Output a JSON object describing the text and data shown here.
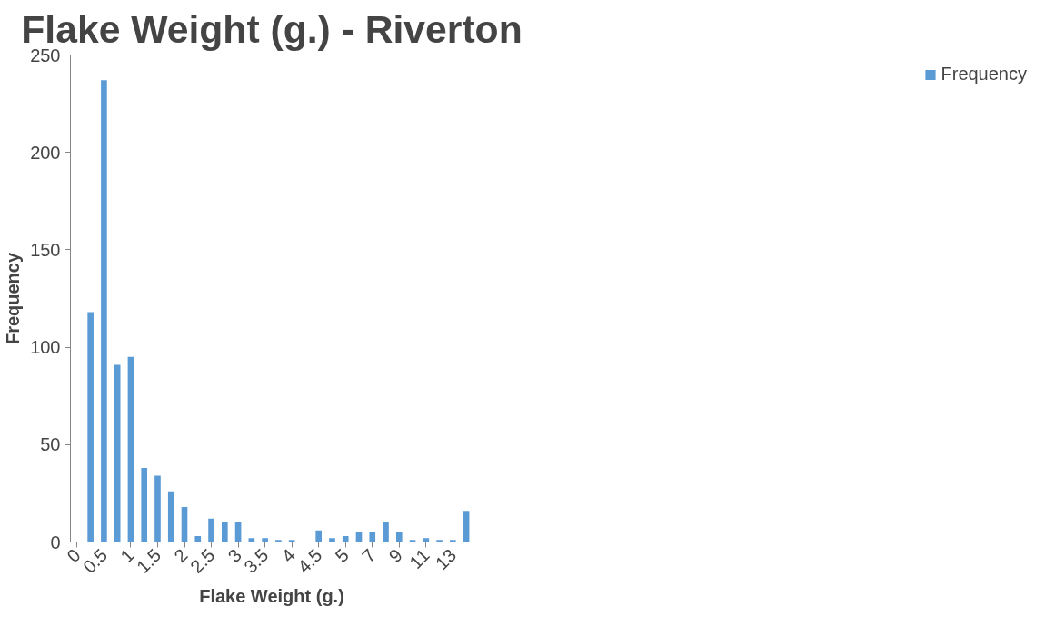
{
  "chart_data": {
    "type": "bar",
    "title": "Flake Weight (g.) - Riverton",
    "xlabel": "Flake Weight (g.)",
    "ylabel": "Frequency",
    "categories": [
      "0",
      null,
      "0.5",
      null,
      "1",
      null,
      "1.5",
      null,
      "2",
      null,
      "2.5",
      null,
      "3",
      null,
      "3.5",
      null,
      "4",
      null,
      "4.5",
      null,
      "5",
      null,
      "7",
      null,
      "9",
      null,
      "11",
      null,
      "13",
      null
    ],
    "series": [
      {
        "name": "Frequency",
        "color": "#5b9bd5",
        "values": [
          0,
          118,
          237,
          91,
          95,
          38,
          34,
          26,
          18,
          3,
          12,
          10,
          10,
          2,
          2,
          1,
          1,
          0,
          6,
          2,
          3,
          5,
          5,
          10,
          5,
          1,
          2,
          1,
          1,
          16
        ]
      }
    ],
    "ylim": [
      0,
      250
    ],
    "yticks": [
      0,
      50,
      100,
      150,
      200,
      250
    ],
    "grid": false,
    "legend": "right"
  }
}
